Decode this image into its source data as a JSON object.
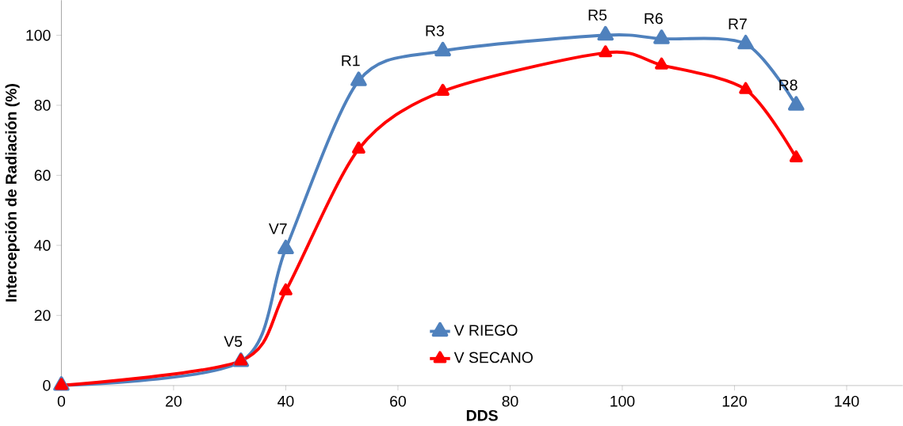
{
  "chart_data": {
    "type": "line",
    "xlabel": "DDS",
    "ylabel": "Intercepción de Radiación (%)",
    "x": [
      0,
      32,
      40,
      53,
      68,
      97,
      107,
      122,
      131
    ],
    "series": [
      {
        "name": "V RIEGO",
        "color": "#4f81bd",
        "values": [
          0,
          6.8,
          39,
          87,
          95.5,
          100,
          99,
          97.5,
          80
        ]
      },
      {
        "name": "V SECANO",
        "color": "#ff0000",
        "values": [
          0,
          7,
          27,
          67.5,
          84,
          95,
          91.5,
          84.5,
          65
        ]
      }
    ],
    "xlim": [
      0,
      150
    ],
    "ylim": [
      0,
      110
    ],
    "xticks": [
      0,
      20,
      40,
      60,
      80,
      100,
      120,
      140
    ],
    "yticks": [
      0,
      20,
      40,
      60,
      80,
      100
    ],
    "annotations": [
      {
        "text": "V5",
        "x": 32,
        "y": 6.8
      },
      {
        "text": "V7",
        "x": 40,
        "y": 39
      },
      {
        "text": "R1",
        "x": 53,
        "y": 87
      },
      {
        "text": "R3",
        "x": 68,
        "y": 95.5
      },
      {
        "text": "R5",
        "x": 97,
        "y": 100
      },
      {
        "text": "R6",
        "x": 107,
        "y": 99
      },
      {
        "text": "R7",
        "x": 122,
        "y": 97.5
      },
      {
        "text": "R8",
        "x": 131,
        "y": 80
      }
    ],
    "grid": false,
    "legend": "bottom",
    "marker": "triangle",
    "line_style": "solid"
  }
}
